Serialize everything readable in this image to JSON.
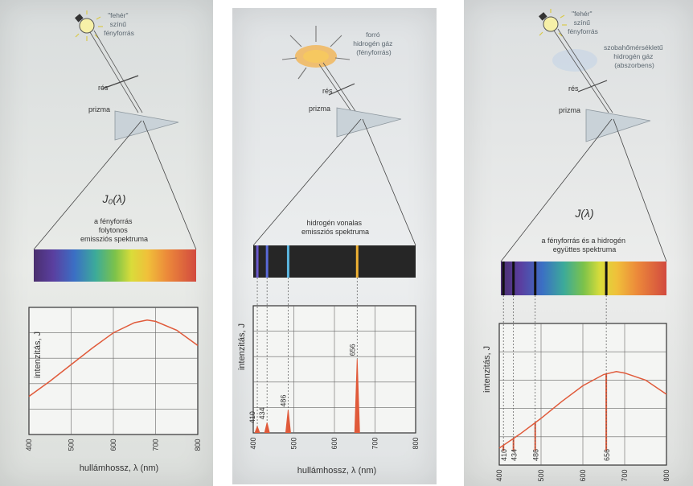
{
  "panels": [
    {
      "source_label": [
        "\"fehér\"",
        "színű",
        "fényforrás"
      ],
      "slit_label": "rés",
      "prism_label": "prizma",
      "formula": "J₀(λ)",
      "spectrum_caption": [
        "a fényforrás",
        "folytonos",
        "emissziós spektruma"
      ],
      "ylabel": "intenzitás, J",
      "xlabel": "hullámhossz, λ (nm)",
      "xticks": [
        "400",
        "500",
        "600",
        "700",
        "800"
      ]
    },
    {
      "source_label": [
        "forró",
        "hidrogén gáz",
        "(fényforrás)"
      ],
      "slit_label": "rés",
      "prism_label": "prizma",
      "spectrum_caption": [
        "hidrogén vonalas",
        "emissziós spektruma"
      ],
      "ylabel": "intenzitás, J",
      "xlabel": "hullámhossz, λ (nm)",
      "xticks": [
        "400",
        "500",
        "600",
        "700",
        "800"
      ],
      "line_labels": [
        "410",
        "434",
        "486",
        "656"
      ]
    },
    {
      "source_label": [
        "\"fehér\"",
        "színű",
        "fényforrás"
      ],
      "absorber_label": [
        "szobahőmérsékletű",
        "hidrogén gáz",
        "(abszorbens)"
      ],
      "slit_label": "rés",
      "prism_label": "prizma",
      "formula": "J(λ)",
      "spectrum_caption": [
        "a fényforrás és a hidrogén",
        "együttes spektruma"
      ],
      "ylabel": "intenzitás, J",
      "xlabel": "hullámhossz, λ (nm)",
      "xticks": [
        "400",
        "500",
        "600",
        "700",
        "800"
      ],
      "line_labels": [
        "410",
        "434",
        "486",
        "656"
      ]
    }
  ],
  "chart_data": [
    {
      "type": "line",
      "x": [
        400,
        450,
        500,
        550,
        600,
        650,
        680,
        700,
        750,
        800
      ],
      "y": [
        0.3,
        0.42,
        0.55,
        0.68,
        0.8,
        0.88,
        0.9,
        0.89,
        0.82,
        0.7
      ],
      "xlim": [
        400,
        800
      ],
      "ylim": [
        0,
        1
      ],
      "grid": true
    },
    {
      "type": "line",
      "emission_lines_nm": [
        410,
        434,
        486,
        656
      ],
      "emission_line_heights": [
        0.05,
        0.08,
        0.18,
        0.58
      ],
      "xlim": [
        400,
        800
      ],
      "ylim": [
        0,
        1
      ],
      "grid": true
    },
    {
      "type": "line",
      "x": [
        400,
        450,
        500,
        550,
        600,
        650,
        680,
        700,
        750,
        800
      ],
      "y": [
        0.12,
        0.22,
        0.33,
        0.45,
        0.56,
        0.64,
        0.66,
        0.65,
        0.6,
        0.5
      ],
      "absorption_lines_nm": [
        410,
        434,
        486,
        656
      ],
      "absorption_depth_to": [
        0.1,
        0.1,
        0.1,
        0.1
      ],
      "xlim": [
        400,
        800
      ],
      "ylim": [
        0,
        1
      ],
      "grid": true
    }
  ],
  "colors": {
    "curve": "#e05a3a",
    "light_yellow": "#f2e24a",
    "gas_glow": "#f3b14a"
  }
}
